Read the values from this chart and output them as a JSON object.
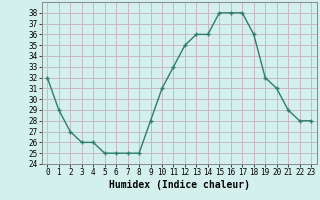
{
  "x": [
    0,
    1,
    2,
    3,
    4,
    5,
    6,
    7,
    8,
    9,
    10,
    11,
    12,
    13,
    14,
    15,
    16,
    17,
    18,
    19,
    20,
    21,
    22,
    23
  ],
  "y": [
    32,
    29,
    27,
    26,
    26,
    25,
    25,
    25,
    25,
    28,
    31,
    33,
    35,
    36,
    36,
    38,
    38,
    38,
    36,
    32,
    31,
    29,
    28,
    28
  ],
  "line_color": "#2e7d6e",
  "marker": "+",
  "marker_size": 3.5,
  "marker_lw": 1.0,
  "bg_color": "#d4f0ec",
  "grid_color": "#c8b8c8",
  "xlabel": "Humidex (Indice chaleur)",
  "xlim": [
    -0.5,
    23.5
  ],
  "ylim": [
    24,
    39
  ],
  "yticks": [
    24,
    25,
    26,
    27,
    28,
    29,
    30,
    31,
    32,
    33,
    34,
    35,
    36,
    37,
    38
  ],
  "xticks": [
    0,
    1,
    2,
    3,
    4,
    5,
    6,
    7,
    8,
    9,
    10,
    11,
    12,
    13,
    14,
    15,
    16,
    17,
    18,
    19,
    20,
    21,
    22,
    23
  ],
  "tick_fontsize": 5.5,
  "xlabel_fontsize": 7.0,
  "line_width": 1.0
}
